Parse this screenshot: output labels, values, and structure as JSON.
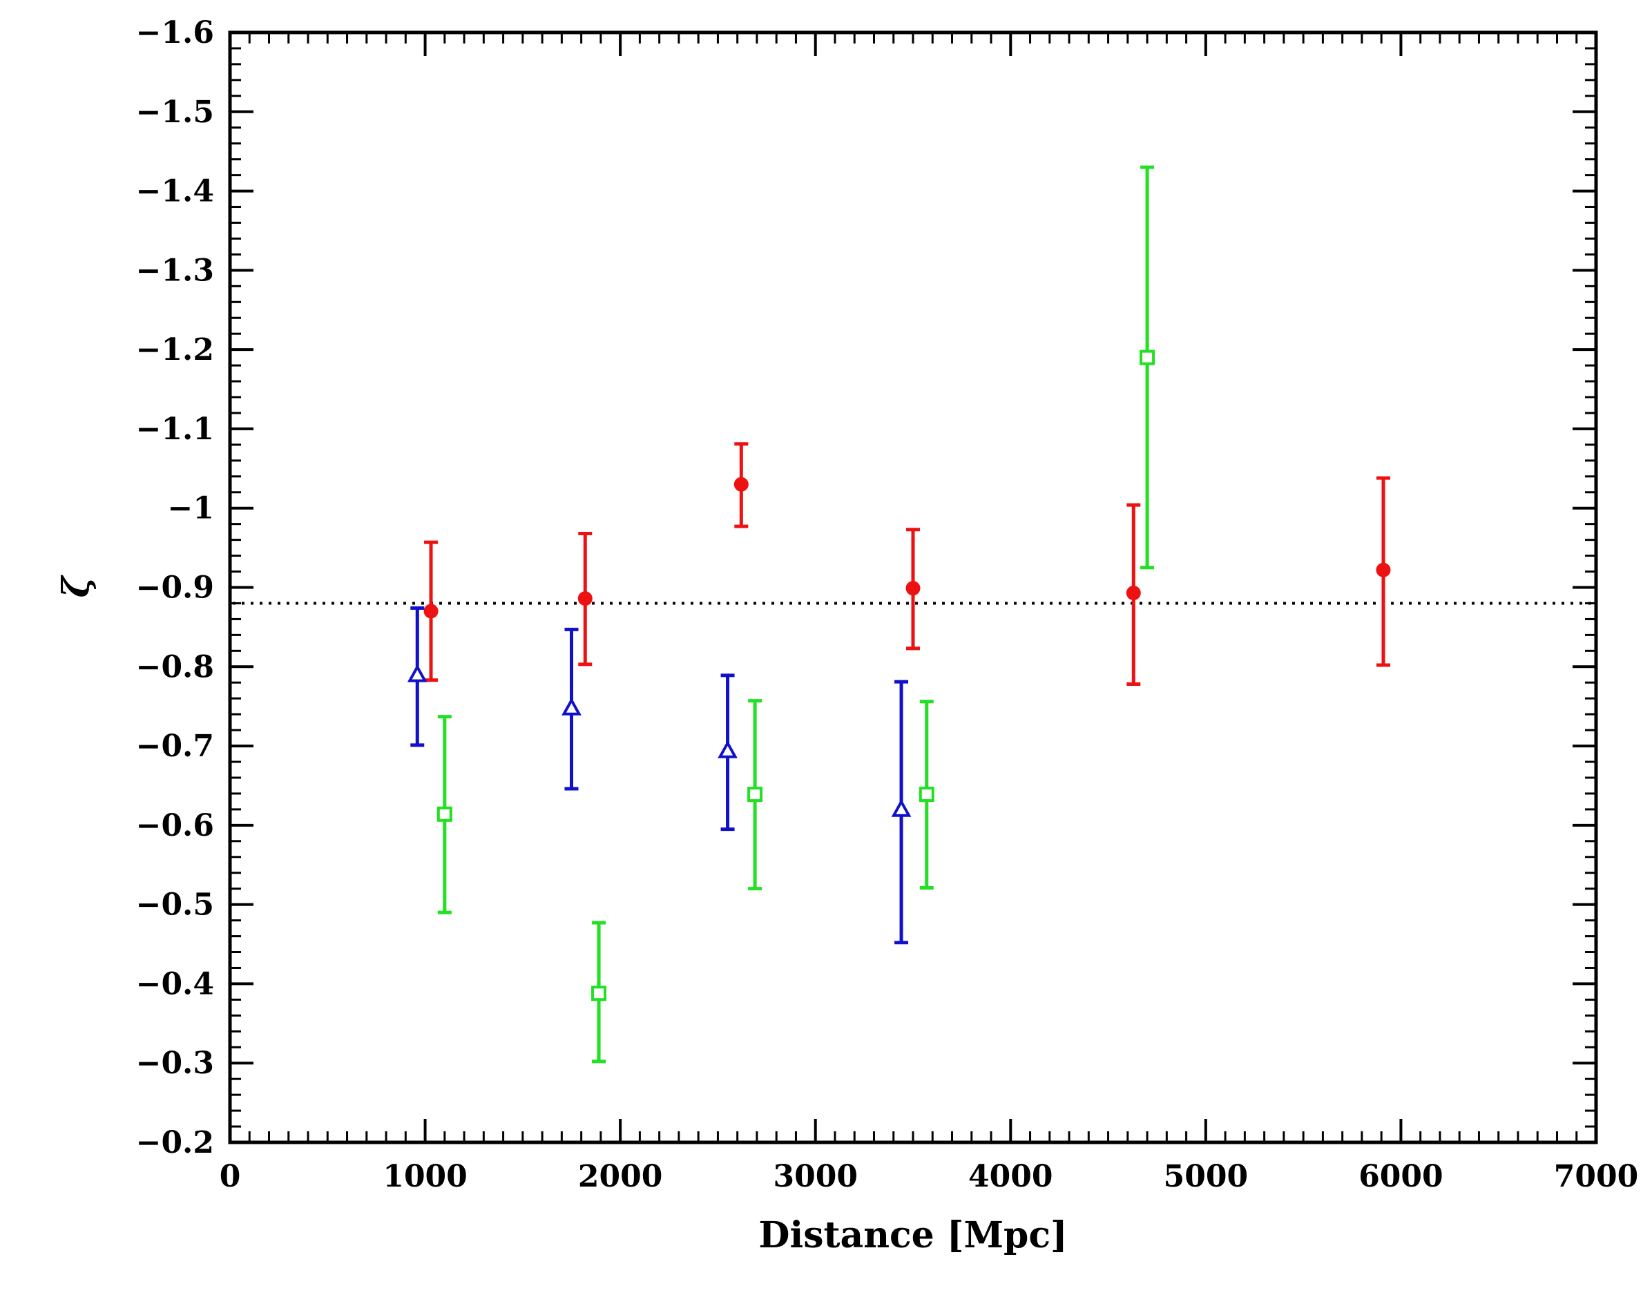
{
  "chart_data": {
    "type": "scatter",
    "title": "",
    "xlabel": "Distance [Mpc]",
    "ylabel": "ζ",
    "xlim": [
      0,
      7000
    ],
    "ylim": [
      -0.2,
      -1.6
    ],
    "y_axis_inverted": true,
    "x_major_ticks": [
      0,
      1000,
      2000,
      3000,
      4000,
      5000,
      6000,
      7000
    ],
    "x_tick_labels": [
      "0",
      "1000",
      "2000",
      "3000",
      "4000",
      "5000",
      "6000",
      "7000"
    ],
    "y_major_ticks": [
      -0.2,
      -0.3,
      -0.4,
      -0.5,
      -0.6,
      -0.7,
      -0.8,
      -0.9,
      -1.0,
      -1.1,
      -1.2,
      -1.3,
      -1.4,
      -1.5,
      -1.6
    ],
    "y_tick_labels": [
      "−0.2",
      "−0.3",
      "−0.4",
      "−0.5",
      "−0.6",
      "−0.7",
      "−0.8",
      "−0.9",
      "−1",
      "−1.1",
      "−1.2",
      "−1.3",
      "−1.4",
      "−1.5",
      "−1.6"
    ],
    "reference_line": {
      "y": -0.88,
      "style": "dotted",
      "color": "#000000"
    },
    "grid": false,
    "series": [
      {
        "marker": "filled-circle",
        "color": "#ee1111",
        "points": [
          {
            "x": 1030,
            "y": -0.87,
            "ylow": -0.783,
            "yhigh": -0.957
          },
          {
            "x": 1820,
            "y": -0.886,
            "ylow": -0.803,
            "yhigh": -0.968
          },
          {
            "x": 2620,
            "y": -1.03,
            "ylow": -0.977,
            "yhigh": -1.081
          },
          {
            "x": 3500,
            "y": -0.899,
            "ylow": -0.823,
            "yhigh": -0.973
          },
          {
            "x": 4630,
            "y": -0.893,
            "ylow": -0.778,
            "yhigh": -1.004
          },
          {
            "x": 5910,
            "y": -0.922,
            "ylow": -0.802,
            "yhigh": -1.038
          }
        ]
      },
      {
        "marker": "open-triangle",
        "color": "#1111cc",
        "points": [
          {
            "x": 960,
            "y": -0.79,
            "ylow": -0.701,
            "yhigh": -0.874
          },
          {
            "x": 1750,
            "y": -0.748,
            "ylow": -0.646,
            "yhigh": -0.847
          },
          {
            "x": 2550,
            "y": -0.694,
            "ylow": -0.595,
            "yhigh": -0.789
          },
          {
            "x": 3440,
            "y": -0.62,
            "ylow": -0.452,
            "yhigh": -0.781
          }
        ]
      },
      {
        "marker": "open-square",
        "color": "#22e022",
        "points": [
          {
            "x": 1100,
            "y": -0.614,
            "ylow": -0.49,
            "yhigh": -0.737
          },
          {
            "x": 1890,
            "y": -0.388,
            "ylow": -0.302,
            "yhigh": -0.477
          },
          {
            "x": 2690,
            "y": -0.639,
            "ylow": -0.52,
            "yhigh": -0.757
          },
          {
            "x": 3570,
            "y": -0.639,
            "ylow": -0.521,
            "yhigh": -0.756
          },
          {
            "x": 4700,
            "y": -1.19,
            "ylow": -0.925,
            "yhigh": -1.43
          }
        ]
      }
    ]
  }
}
